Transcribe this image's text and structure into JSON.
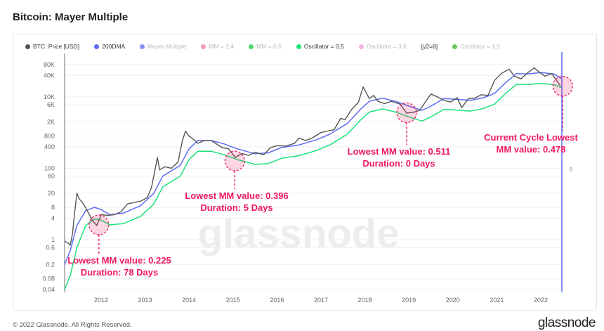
{
  "title": "Bitcoin: Mayer Multiple",
  "legend": [
    {
      "label": "BTC: Price [USD]",
      "color": "#555555",
      "active": true
    },
    {
      "label": "200DMA",
      "color": "#5b6cf5",
      "active": true
    },
    {
      "label": "Mayer Multiple",
      "color": "#5b6cf5",
      "active": false
    },
    {
      "label": "MM = 2.4",
      "color": "#f47aa6",
      "active": false
    },
    {
      "label": "MM = 0.5",
      "color": "#15c93a",
      "active": false
    },
    {
      "label": "Oscillator = 0.5",
      "color": "#1de17a",
      "active": true
    },
    {
      "label": "Oscillator = 3.6",
      "color": "#f39ad0",
      "active": false
    },
    {
      "label": "[y2=8]",
      "color": "",
      "active": true
    },
    {
      "label": "Oscillator = 1.5",
      "color": "#3cb521",
      "active": false
    }
  ],
  "footer": "© 2022 Glassnode. All Rights Reserved.",
  "logo": "glassnode",
  "watermark": "glassnode",
  "chart_data": {
    "type": "line",
    "yscale": "log",
    "ylim": [
      0.04,
      80000
    ],
    "xlim": [
      2011.17,
      2022.48
    ],
    "y_ticks": [
      "80K",
      "40K",
      "10K",
      "6K",
      "2K",
      "800",
      "400",
      "100",
      "60",
      "20",
      "8",
      "4",
      "1",
      "0.6",
      "0.2",
      "0.08",
      "0.04"
    ],
    "y_tick_values": [
      80000,
      40000,
      10000,
      6000,
      2000,
      800,
      400,
      100,
      60,
      20,
      8,
      4,
      1,
      0.6,
      0.2,
      0.08,
      0.04
    ],
    "x_ticks": [
      "2012",
      "2013",
      "2014",
      "2015",
      "2016",
      "2017",
      "2018",
      "2019",
      "2020",
      "2021",
      "2022"
    ],
    "y2_marker": {
      "label": "8",
      "x": 2022.48
    },
    "grid": "horizontal",
    "series": [
      {
        "name": "BTC: Price [USD]",
        "color": "#555555",
        "points": [
          [
            2011.17,
            0.9
          ],
          [
            2011.25,
            0.8
          ],
          [
            2011.3,
            0.7
          ],
          [
            2011.35,
            1.5
          ],
          [
            2011.4,
            6
          ],
          [
            2011.45,
            20
          ],
          [
            2011.5,
            14
          ],
          [
            2011.6,
            10
          ],
          [
            2011.7,
            6
          ],
          [
            2011.8,
            3.5
          ],
          [
            2011.9,
            2.5
          ],
          [
            2012.0,
            5
          ],
          [
            2012.15,
            4.8
          ],
          [
            2012.3,
            5
          ],
          [
            2012.45,
            6
          ],
          [
            2012.6,
            10
          ],
          [
            2012.75,
            11
          ],
          [
            2012.9,
            12
          ],
          [
            2013.05,
            15
          ],
          [
            2013.15,
            30
          ],
          [
            2013.28,
            200
          ],
          [
            2013.33,
            90
          ],
          [
            2013.45,
            110
          ],
          [
            2013.6,
            100
          ],
          [
            2013.75,
            150
          ],
          [
            2013.85,
            600
          ],
          [
            2013.92,
            1100
          ],
          [
            2014.0,
            800
          ],
          [
            2014.1,
            650
          ],
          [
            2014.2,
            500
          ],
          [
            2014.35,
            600
          ],
          [
            2014.5,
            600
          ],
          [
            2014.6,
            500
          ],
          [
            2014.75,
            380
          ],
          [
            2014.9,
            350
          ],
          [
            2015.05,
            200
          ],
          [
            2015.2,
            260
          ],
          [
            2015.35,
            230
          ],
          [
            2015.5,
            280
          ],
          [
            2015.7,
            240
          ],
          [
            2015.85,
            380
          ],
          [
            2016.0,
            430
          ],
          [
            2016.2,
            420
          ],
          [
            2016.4,
            500
          ],
          [
            2016.5,
            700
          ],
          [
            2016.65,
            600
          ],
          [
            2016.8,
            700
          ],
          [
            2017.0,
            1000
          ],
          [
            2017.15,
            1100
          ],
          [
            2017.3,
            1200
          ],
          [
            2017.45,
            2500
          ],
          [
            2017.55,
            2300
          ],
          [
            2017.7,
            4500
          ],
          [
            2017.85,
            7000
          ],
          [
            2017.96,
            19000
          ],
          [
            2018.1,
            9000
          ],
          [
            2018.2,
            11000
          ],
          [
            2018.3,
            7500
          ],
          [
            2018.45,
            6500
          ],
          [
            2018.6,
            7500
          ],
          [
            2018.8,
            6300
          ],
          [
            2018.95,
            3500
          ],
          [
            2019.1,
            3700
          ],
          [
            2019.25,
            4200
          ],
          [
            2019.4,
            8000
          ],
          [
            2019.5,
            12000
          ],
          [
            2019.65,
            10000
          ],
          [
            2019.8,
            8000
          ],
          [
            2019.95,
            7200
          ],
          [
            2020.1,
            9500
          ],
          [
            2020.2,
            5000
          ],
          [
            2020.35,
            8800
          ],
          [
            2020.5,
            9300
          ],
          [
            2020.65,
            11500
          ],
          [
            2020.8,
            11000
          ],
          [
            2020.95,
            29000
          ],
          [
            2021.1,
            45000
          ],
          [
            2021.28,
            60000
          ],
          [
            2021.4,
            38000
          ],
          [
            2021.55,
            32000
          ],
          [
            2021.7,
            47000
          ],
          [
            2021.85,
            65000
          ],
          [
            2022.0,
            46000
          ],
          [
            2022.1,
            38000
          ],
          [
            2022.25,
            45000
          ],
          [
            2022.35,
            30000
          ],
          [
            2022.45,
            20000
          ]
        ]
      },
      {
        "name": "200DMA",
        "color": "#5b6cf5",
        "points": [
          [
            2011.17,
            0.2
          ],
          [
            2011.3,
            0.5
          ],
          [
            2011.45,
            2.5
          ],
          [
            2011.65,
            6.5
          ],
          [
            2011.85,
            8
          ],
          [
            2012.0,
            7
          ],
          [
            2012.2,
            5
          ],
          [
            2012.5,
            5.5
          ],
          [
            2012.9,
            9
          ],
          [
            2013.2,
            20
          ],
          [
            2013.4,
            60
          ],
          [
            2013.8,
            120
          ],
          [
            2014.0,
            350
          ],
          [
            2014.2,
            600
          ],
          [
            2014.5,
            600
          ],
          [
            2014.8,
            480
          ],
          [
            2015.1,
            350
          ],
          [
            2015.5,
            255
          ],
          [
            2015.8,
            270
          ],
          [
            2016.1,
            380
          ],
          [
            2016.5,
            450
          ],
          [
            2016.9,
            630
          ],
          [
            2017.2,
            900
          ],
          [
            2017.6,
            1800
          ],
          [
            2017.9,
            4500
          ],
          [
            2018.1,
            7500
          ],
          [
            2018.4,
            9200
          ],
          [
            2018.7,
            7500
          ],
          [
            2019.0,
            5500
          ],
          [
            2019.3,
            4200
          ],
          [
            2019.5,
            5500
          ],
          [
            2019.8,
            9000
          ],
          [
            2020.1,
            8500
          ],
          [
            2020.4,
            8000
          ],
          [
            2020.7,
            9500
          ],
          [
            2020.95,
            12500
          ],
          [
            2021.2,
            25000
          ],
          [
            2021.45,
            45000
          ],
          [
            2021.7,
            44000
          ],
          [
            2022.0,
            48000
          ],
          [
            2022.3,
            44000
          ],
          [
            2022.48,
            32000
          ]
        ]
      },
      {
        "name": "Oscillator = 0.5",
        "color": "#1de17a",
        "points": [
          [
            2011.17,
            0.04
          ],
          [
            2011.3,
            0.1
          ],
          [
            2011.45,
            0.6
          ],
          [
            2011.65,
            2.5
          ],
          [
            2011.85,
            3.8
          ],
          [
            2012.0,
            3.5
          ],
          [
            2012.2,
            2.6
          ],
          [
            2012.5,
            2.8
          ],
          [
            2012.9,
            4.5
          ],
          [
            2013.2,
            10
          ],
          [
            2013.4,
            30
          ],
          [
            2013.8,
            60
          ],
          [
            2014.0,
            175
          ],
          [
            2014.2,
            300
          ],
          [
            2014.5,
            300
          ],
          [
            2014.8,
            240
          ],
          [
            2015.1,
            175
          ],
          [
            2015.5,
            128
          ],
          [
            2015.8,
            135
          ],
          [
            2016.1,
            190
          ],
          [
            2016.5,
            225
          ],
          [
            2016.9,
            315
          ],
          [
            2017.2,
            450
          ],
          [
            2017.6,
            900
          ],
          [
            2017.9,
            2250
          ],
          [
            2018.1,
            3750
          ],
          [
            2018.4,
            4600
          ],
          [
            2018.7,
            3750
          ],
          [
            2019.0,
            2750
          ],
          [
            2019.3,
            2100
          ],
          [
            2019.5,
            2750
          ],
          [
            2019.8,
            4500
          ],
          [
            2020.1,
            4250
          ],
          [
            2020.4,
            4000
          ],
          [
            2020.7,
            4750
          ],
          [
            2020.95,
            6250
          ],
          [
            2021.2,
            12500
          ],
          [
            2021.45,
            22500
          ],
          [
            2021.7,
            22000
          ],
          [
            2022.0,
            24000
          ],
          [
            2022.3,
            22000
          ],
          [
            2022.48,
            18000
          ]
        ]
      }
    ],
    "annotations": [
      {
        "x": 2011.95,
        "y": 2.6,
        "lines": [
          "Lowest MM value: 0.225",
          "Duration: 78 Days"
        ]
      },
      {
        "x": 2015.04,
        "y": 160,
        "lines": [
          "Lowest MM value: 0.396",
          "Duration: 5 Days"
        ]
      },
      {
        "x": 2018.95,
        "y": 3600,
        "lines": [
          "Lowest MM value: 0.511",
          "Duration: 0 Days"
        ]
      },
      {
        "x": 2022.5,
        "y": 20000,
        "lines": [
          "Current Cycle Lowest",
          "MM value: 0.478"
        ]
      }
    ],
    "annotation_color": "#f0195f"
  }
}
